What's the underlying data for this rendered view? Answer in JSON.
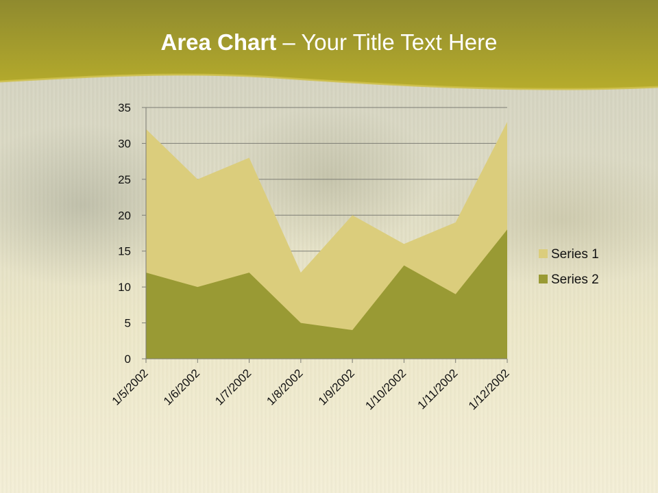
{
  "slide": {
    "title_bold": "Area Chart",
    "title_rest": " – Your Title Text Here"
  },
  "colors": {
    "header": "#a9a02a",
    "series1": "#dbcd7c",
    "series2": "#999a34"
  },
  "chart_data": {
    "type": "area",
    "title": "",
    "xlabel": "",
    "ylabel": "",
    "categories": [
      "1/5/2002",
      "1/6/2002",
      "1/7/2002",
      "1/8/2002",
      "1/9/2002",
      "1/10/2002",
      "1/11/2002",
      "1/12/2002"
    ],
    "series": [
      {
        "name": "Series 1",
        "values": [
          32,
          25,
          28,
          12,
          20,
          16,
          19,
          33
        ]
      },
      {
        "name": "Series 2",
        "values": [
          12,
          10,
          12,
          5,
          4,
          13,
          9,
          18
        ]
      }
    ],
    "ylim": [
      0,
      35
    ],
    "yticks": [
      0,
      5,
      10,
      15,
      20,
      25,
      30,
      35
    ],
    "grid": true,
    "legend": "right"
  }
}
